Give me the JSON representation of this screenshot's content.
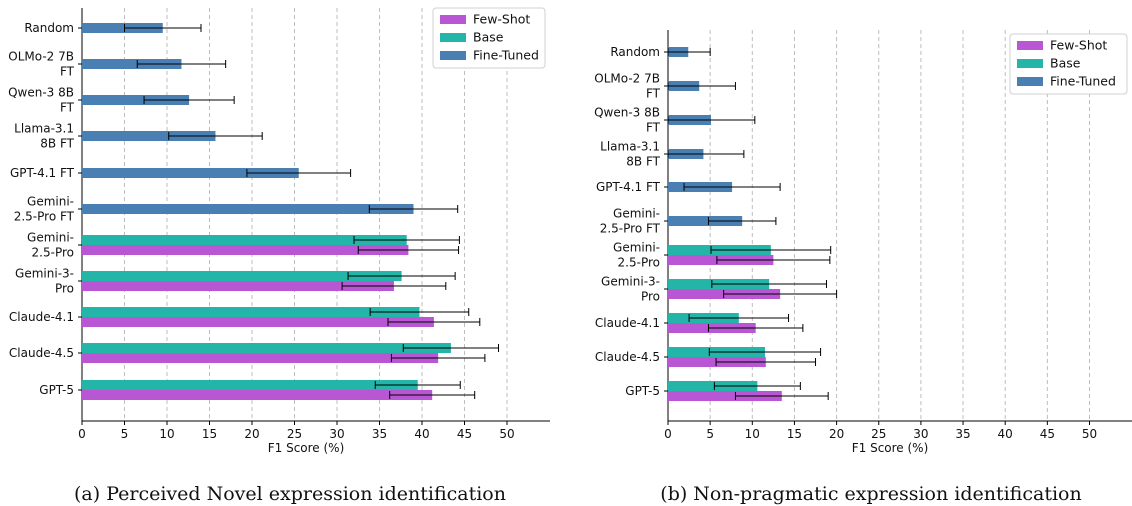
{
  "colors": {
    "Few-Shot": "#b856d4",
    "Base": "#22b5a8",
    "Fine-Tuned": "#4a7fb3"
  },
  "chart_data": [
    {
      "type": "bar",
      "orientation": "horizontal",
      "caption": "(a) Perceived Novel expression identification",
      "xlabel": "F1 Score (%)",
      "xlim": [
        0,
        55
      ],
      "xticks": [
        0,
        5,
        10,
        15,
        20,
        25,
        30,
        35,
        40,
        45,
        50
      ],
      "grid": "vertical dashed",
      "legend_position": "top-right",
      "legend": [
        "Few-Shot",
        "Base",
        "Fine-Tuned"
      ],
      "categories": [
        {
          "label": [
            "Random"
          ],
          "Fine-Tuned": [
            9.5,
            4.5
          ]
        },
        {
          "label": [
            "OLMo-2 7B",
            "FT"
          ],
          "Fine-Tuned": [
            11.7,
            5.2
          ]
        },
        {
          "label": [
            "Qwen-3 8B",
            "FT"
          ],
          "Fine-Tuned": [
            12.6,
            5.3
          ]
        },
        {
          "label": [
            "Llama-3.1",
            "8B FT"
          ],
          "Fine-Tuned": [
            15.7,
            5.5
          ]
        },
        {
          "label": [
            "GPT-4.1 FT"
          ],
          "Fine-Tuned": [
            25.5,
            6.1
          ]
        },
        {
          "label": [
            "Gemini-",
            "2.5-Pro FT"
          ],
          "Fine-Tuned": [
            39.0,
            5.2
          ]
        },
        {
          "label": [
            "Gemini-",
            "2.5-Pro"
          ],
          "Base": [
            38.2,
            6.2
          ],
          "Few-Shot": [
            38.4,
            5.9
          ]
        },
        {
          "label": [
            "Gemini-3-",
            "Pro"
          ],
          "Base": [
            37.6,
            6.3
          ],
          "Few-Shot": [
            36.7,
            6.1
          ]
        },
        {
          "label": [
            "Claude-4.1"
          ],
          "Base": [
            39.7,
            5.8
          ],
          "Few-Shot": [
            41.4,
            5.4
          ]
        },
        {
          "label": [
            "Claude-4.5"
          ],
          "Base": [
            43.4,
            5.6
          ],
          "Few-Shot": [
            41.9,
            5.5
          ]
        },
        {
          "label": [
            "GPT-5"
          ],
          "Base": [
            39.5,
            5.0
          ],
          "Few-Shot": [
            41.2,
            5.0
          ]
        }
      ]
    },
    {
      "type": "bar",
      "orientation": "horizontal",
      "caption": "(b) Non-pragmatic expression identification",
      "xlabel": "F1 Score (%)",
      "xlim": [
        0,
        55
      ],
      "xticks": [
        0,
        5,
        10,
        15,
        20,
        25,
        30,
        35,
        40,
        45,
        50
      ],
      "grid": "vertical dashed",
      "legend_position": "top-right",
      "legend": [
        "Few-Shot",
        "Base",
        "Fine-Tuned"
      ],
      "categories": [
        {
          "label": [
            "Random"
          ],
          "Fine-Tuned": [
            2.4,
            2.6
          ]
        },
        {
          "label": [
            "OLMo-2 7B",
            "FT"
          ],
          "Fine-Tuned": [
            3.7,
            4.3
          ]
        },
        {
          "label": [
            "Qwen-3 8B",
            "FT"
          ],
          "Fine-Tuned": [
            5.1,
            5.2
          ]
        },
        {
          "label": [
            "Llama-3.1",
            "8B FT"
          ],
          "Fine-Tuned": [
            4.2,
            4.8
          ]
        },
        {
          "label": [
            "GPT-4.1 FT"
          ],
          "Fine-Tuned": [
            7.6,
            5.7
          ]
        },
        {
          "label": [
            "Gemini-",
            "2.5-Pro FT"
          ],
          "Fine-Tuned": [
            8.8,
            4.0
          ]
        },
        {
          "label": [
            "Gemini-",
            "2.5-Pro"
          ],
          "Base": [
            12.2,
            7.1
          ],
          "Few-Shot": [
            12.5,
            6.7
          ]
        },
        {
          "label": [
            "Gemini-3-",
            "Pro"
          ],
          "Base": [
            12.0,
            6.8
          ],
          "Few-Shot": [
            13.3,
            6.7
          ]
        },
        {
          "label": [
            "Claude-4.1"
          ],
          "Base": [
            8.4,
            5.9
          ],
          "Few-Shot": [
            10.4,
            5.6
          ]
        },
        {
          "label": [
            "Claude-4.5"
          ],
          "Base": [
            11.5,
            6.6
          ],
          "Few-Shot": [
            11.6,
            5.9
          ]
        },
        {
          "label": [
            "GPT-5"
          ],
          "Base": [
            10.6,
            5.1
          ],
          "Few-Shot": [
            13.5,
            5.5
          ]
        }
      ]
    }
  ]
}
